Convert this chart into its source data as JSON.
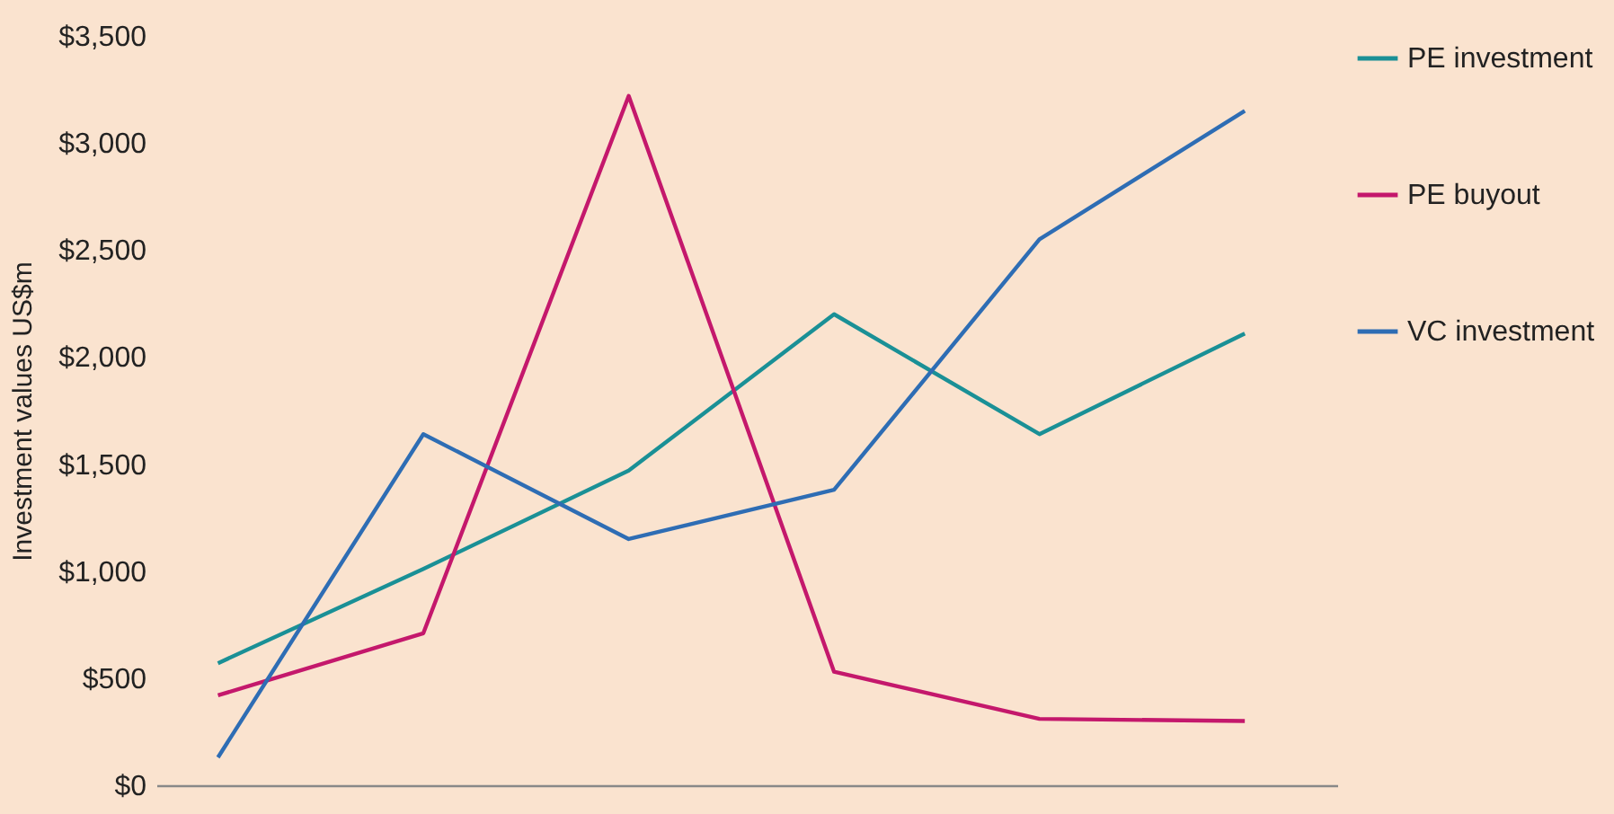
{
  "chart_data": {
    "type": "line",
    "ylabel": "Investment values US$m",
    "categories": [
      null,
      null,
      null,
      null,
      null,
      null
    ],
    "series": [
      {
        "name": "PE investment",
        "color": "#1a9096",
        "values": [
          570,
          1010,
          1470,
          2200,
          1640,
          2110
        ]
      },
      {
        "name": "PE buyout",
        "color": "#c4186c",
        "values": [
          420,
          710,
          3220,
          530,
          310,
          300
        ]
      },
      {
        "name": "VC investment",
        "color": "#2e6db4",
        "values": [
          130,
          1640,
          1150,
          1380,
          2550,
          3150
        ]
      }
    ],
    "ylim": [
      0,
      3500
    ],
    "yticks": [
      {
        "value": 0,
        "label": "$0"
      },
      {
        "value": 500,
        "label": "$500"
      },
      {
        "value": 1000,
        "label": "$1,000"
      },
      {
        "value": 1500,
        "label": "$1,500"
      },
      {
        "value": 2000,
        "label": "$2,000"
      },
      {
        "value": 2500,
        "label": "$2,500"
      },
      {
        "value": 3000,
        "label": "$3,000"
      },
      {
        "value": 3500,
        "label": "$3,500"
      }
    ],
    "grid": false,
    "legend": "top right",
    "marker": "none",
    "line_style": "solid"
  }
}
